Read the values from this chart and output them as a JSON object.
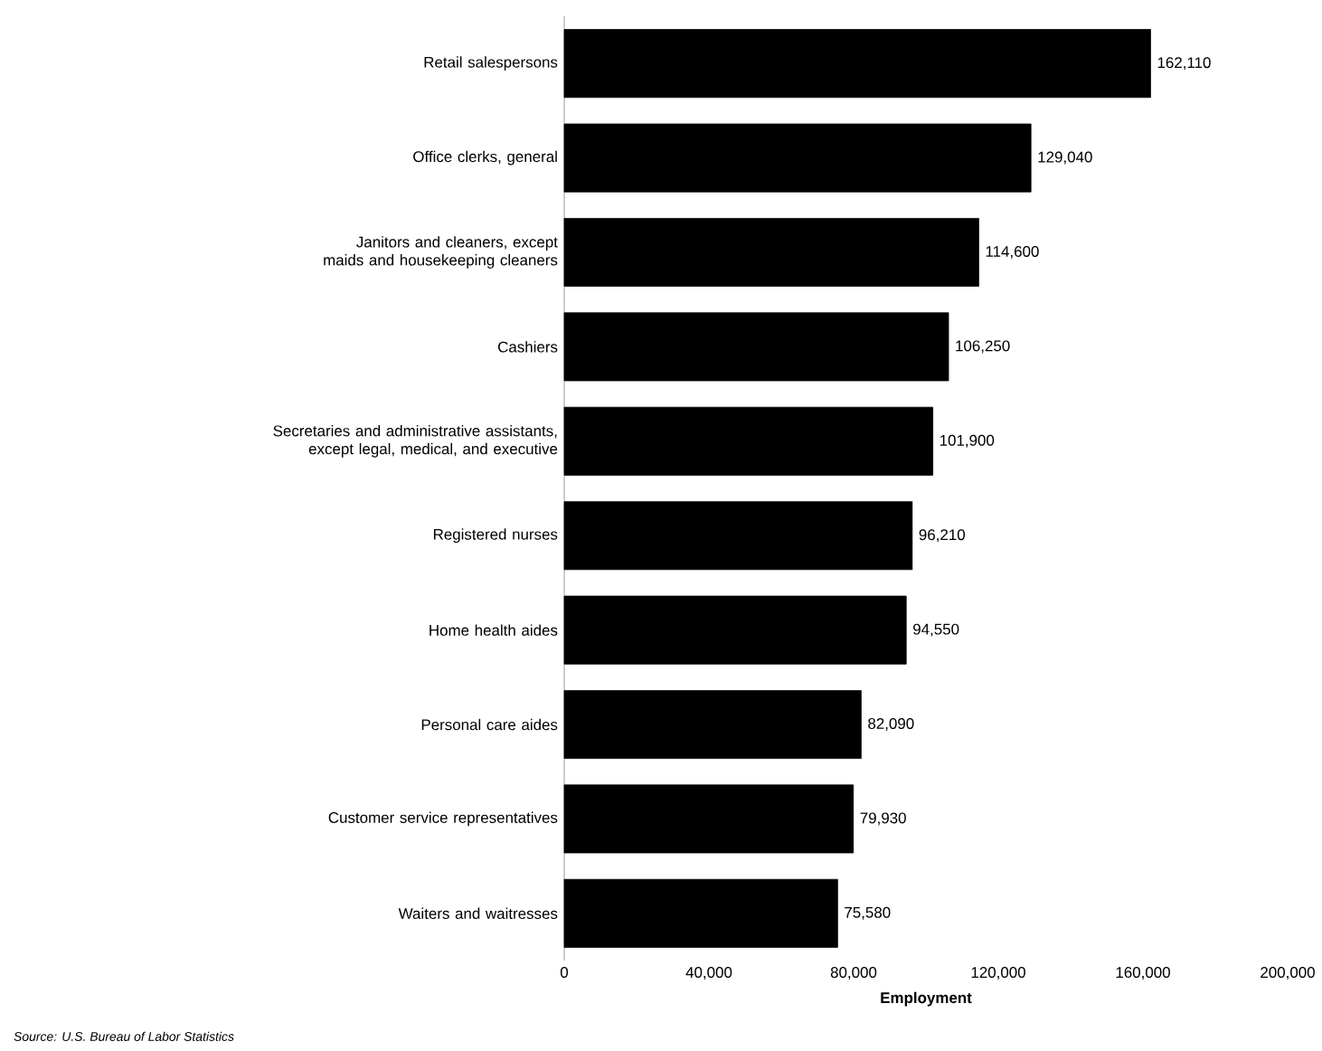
{
  "chart_data": {
    "type": "bar",
    "orientation": "horizontal",
    "xlabel": "Employment",
    "categories": [
      "Retail salespersons",
      "Office clerks, general",
      "Janitors and cleaners, except maids and housekeeping cleaners",
      "Cashiers",
      "Secretaries and administrative assistants, except legal, medical, and executive",
      "Registered nurses",
      "Home health aides",
      "Personal care aides",
      "Customer service representatives",
      "Waiters and waitresses"
    ],
    "values": [
      162110,
      129040,
      114600,
      106250,
      101900,
      96210,
      94550,
      82090,
      79930,
      75580
    ],
    "value_labels": [
      "162,110",
      "129,040",
      "114,600",
      "106,250",
      "101,900",
      "96,210",
      "94,550",
      "82,090",
      "79,930",
      "75,580"
    ],
    "color": "#000000",
    "xlim": [
      0,
      200000
    ],
    "xticks": [
      0,
      {
        "value": 40000,
        "label": "40,000"
      },
      {
        "value": 80000,
        "label": "80,000"
      },
      {
        "value": 120000,
        "label": "120,000"
      },
      {
        "value": 160000,
        "label": "160,000"
      },
      {
        "value": 200000,
        "label": "200,000"
      }
    ],
    "annotations": [
      "Source: U.S. Bureau of Labor Statistics"
    ]
  }
}
